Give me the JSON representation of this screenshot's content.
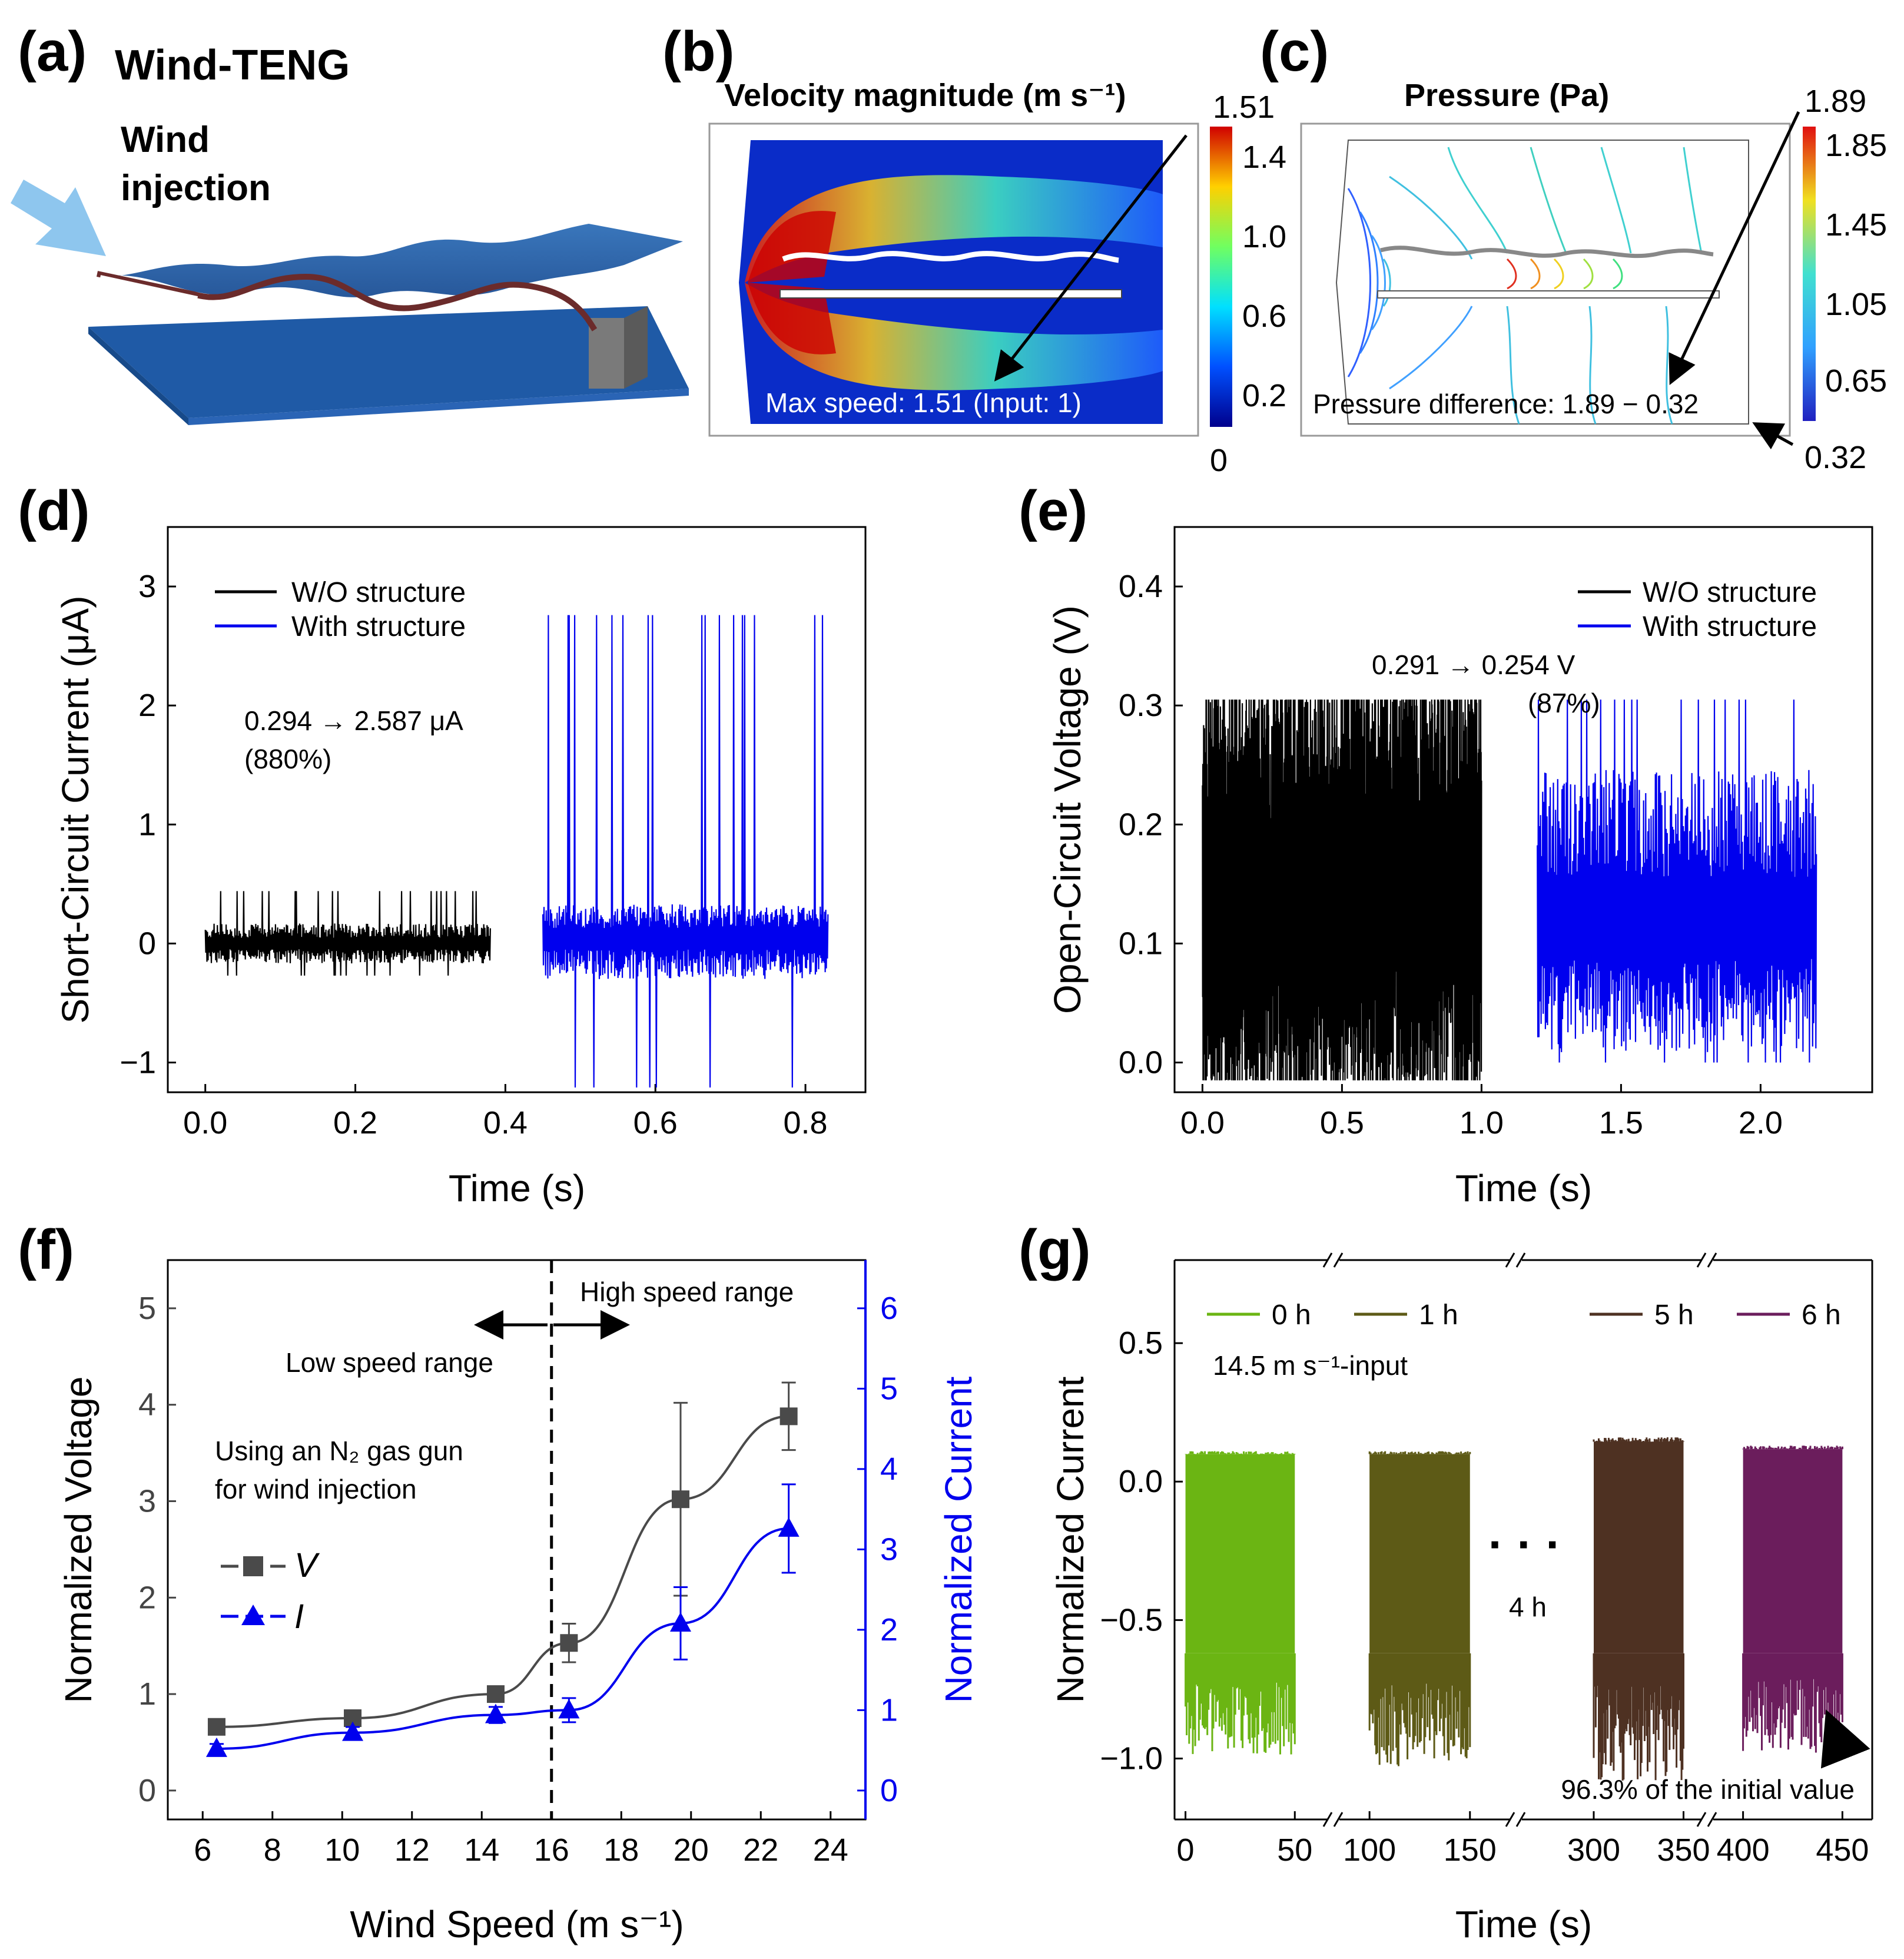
{
  "panels": {
    "a": {
      "label": "(a)",
      "title": "Wind-TENG",
      "wind_label_1": "Wind",
      "wind_label_2": "injection"
    },
    "b": {
      "label": "(b)",
      "title": "Velocity magnitude (m s⁻¹)",
      "annotation": "Max speed: 1.51 (Input: 1)",
      "colorbar_max": "1.51",
      "colorbar_min": "0",
      "colorbar_ticks": [
        "1.4",
        "1.0",
        "0.6",
        "0.2"
      ]
    },
    "c": {
      "label": "(c)",
      "title": "Pressure (Pa)",
      "annotation": "Pressure difference: 1.89 − 0.32",
      "colorbar_max": "1.89",
      "colorbar_min": "0.32",
      "colorbar_ticks": [
        "1.85",
        "1.45",
        "1.05",
        "0.65"
      ]
    },
    "d": {
      "label": "(d)"
    },
    "e": {
      "label": "(e)"
    },
    "f": {
      "label": "(f)"
    },
    "g": {
      "label": "(g)"
    }
  },
  "colors": {
    "black_series": "#000000",
    "blue_series": "#0000ee",
    "gray_series": "#4a4a4a",
    "g_0h": "#6bb513",
    "g_1h": "#5d5a16",
    "g_5h": "#4e3122",
    "g_6h": "#6b1d5c"
  },
  "chart_data": [
    {
      "id": "d",
      "type": "line",
      "xlabel": "Time (s)",
      "ylabel": "Short-Circuit Current (μA)",
      "xlim": [
        -0.05,
        0.88
      ],
      "ylim": [
        -1.25,
        3.5
      ],
      "xticks": [
        "0.0",
        "0.2",
        "0.4",
        "0.6",
        "0.8"
      ],
      "yticks": [
        "−1",
        "0",
        "1",
        "2",
        "3"
      ],
      "legend": [
        "W/O structure",
        "With structure"
      ],
      "annotation": [
        "0.294 → 2.587 μA",
        "(880%)"
      ],
      "series": [
        {
          "name": "W/O structure",
          "x_range": [
            0.0,
            0.38
          ],
          "baseline": 0.0,
          "min": -0.27,
          "max": 0.44
        },
        {
          "name": "With structure",
          "x_range": [
            0.45,
            0.83
          ],
          "baseline": 0.0,
          "min": -1.21,
          "max": 2.76
        }
      ]
    },
    {
      "id": "e",
      "type": "line",
      "xlabel": "Time (s)",
      "ylabel": "Open-Circuit Voltage (V)",
      "xlim": [
        -0.1,
        2.4
      ],
      "ylim": [
        -0.025,
        0.45
      ],
      "xticks": [
        "0.0",
        "0.5",
        "1.0",
        "1.5",
        "2.0"
      ],
      "yticks": [
        "0.0",
        "0.1",
        "0.2",
        "0.3",
        "0.4"
      ],
      "legend": [
        "W/O structure",
        "With structure"
      ],
      "annotation": [
        "0.291 → 0.254 V",
        "(87%)"
      ],
      "series": [
        {
          "name": "W/O structure",
          "x_range": [
            0.0,
            1.0
          ],
          "min": -0.015,
          "max": 0.305
        },
        {
          "name": "With structure",
          "x_range": [
            1.2,
            2.2
          ],
          "min": 0.0,
          "max": 0.305
        }
      ]
    },
    {
      "id": "f",
      "type": "line",
      "xlabel": "Wind Speed (m s⁻¹)",
      "ylabel": "Normalized Voltage",
      "ylabel_right": "Normalized Current",
      "xlim": [
        5,
        25
      ],
      "ylim": [
        -0.3,
        5.5
      ],
      "ylim_right": [
        -0.36,
        6.6
      ],
      "xticks": [
        "6",
        "8",
        "10",
        "12",
        "14",
        "16",
        "18",
        "20",
        "22",
        "24"
      ],
      "yticks": [
        "0",
        "1",
        "2",
        "3",
        "4",
        "5"
      ],
      "yticks_right": [
        "0",
        "1",
        "2",
        "3",
        "4",
        "5",
        "6"
      ],
      "x": [
        6.4,
        10.3,
        14.4,
        16.5,
        19.7,
        22.8
      ],
      "series": [
        {
          "name": "V",
          "axis": "left",
          "values": [
            0.66,
            0.75,
            1.0,
            1.53,
            3.02,
            3.88
          ],
          "errors": [
            0.04,
            0.05,
            0.08,
            0.2,
            1.0,
            0.35
          ]
        },
        {
          "name": "I",
          "axis": "right",
          "values": [
            0.52,
            0.72,
            0.94,
            1.0,
            2.08,
            3.26
          ],
          "errors": [
            0.06,
            0.07,
            0.1,
            0.15,
            0.45,
            0.55
          ]
        }
      ],
      "legend": [
        "V",
        "I"
      ],
      "divider_x": 16,
      "annotations": [
        "High speed range",
        "Low speed range",
        "Using an N₂ gas gun",
        "for wind injection"
      ]
    },
    {
      "id": "g",
      "type": "line",
      "xlabel": "Time (s)",
      "ylabel": "Normalized Current",
      "ylim": [
        -1.22,
        0.8
      ],
      "xticks": [
        "0",
        "50",
        "100",
        "150",
        "300",
        "350",
        "400",
        "450"
      ],
      "yticks": [
        "0.5",
        "0.0",
        "−0.5",
        "−1.0"
      ],
      "legend": [
        "0 h",
        "1 h",
        "5 h",
        "6 h"
      ],
      "annotations": [
        "14.5 m s⁻¹-input",
        "· · ·",
        "4 h",
        "96.3% of the initial value"
      ],
      "series": [
        {
          "name": "0 h",
          "time_range": [
            0,
            50
          ],
          "max": 0.11,
          "min": -1.0
        },
        {
          "name": "1 h",
          "time_range": [
            100,
            150
          ],
          "max": 0.11,
          "min": -1.04
        },
        {
          "name": "5 h",
          "time_range": [
            300,
            350
          ],
          "max": 0.16,
          "min": -1.08
        },
        {
          "name": "6 h",
          "time_range": [
            400,
            450
          ],
          "max": 0.13,
          "min": -0.98
        }
      ]
    }
  ]
}
